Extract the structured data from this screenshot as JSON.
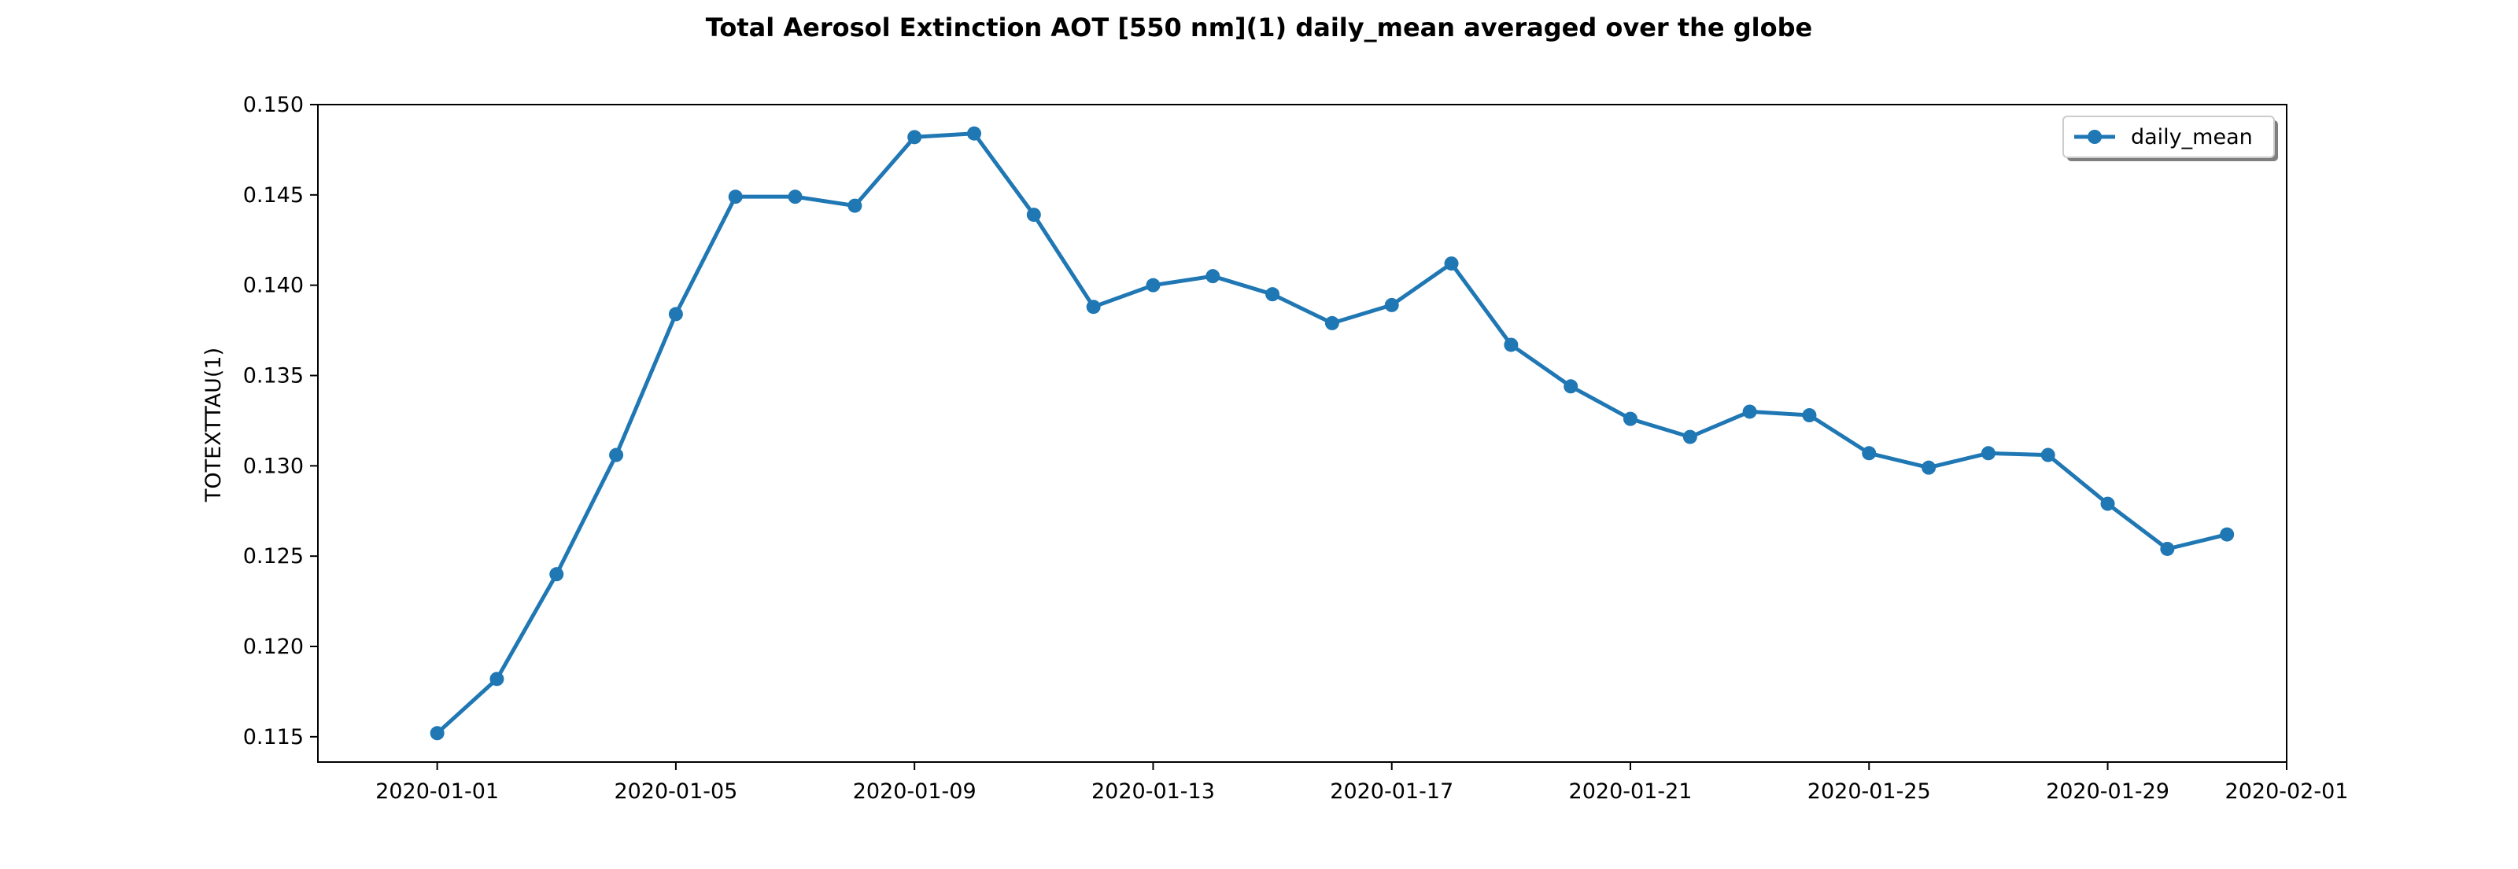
{
  "chart_data": {
    "type": "line",
    "title": "Total Aerosol Extinction AOT [550 nm](1) daily_mean averaged over the globe",
    "xlabel": "",
    "ylabel": "TOTEXTTAU(1)",
    "x": [
      "2020-01-01",
      "2020-01-02",
      "2020-01-03",
      "2020-01-04",
      "2020-01-05",
      "2020-01-06",
      "2020-01-07",
      "2020-01-08",
      "2020-01-09",
      "2020-01-10",
      "2020-01-11",
      "2020-01-12",
      "2020-01-13",
      "2020-01-14",
      "2020-01-15",
      "2020-01-16",
      "2020-01-17",
      "2020-01-18",
      "2020-01-19",
      "2020-01-20",
      "2020-01-21",
      "2020-01-22",
      "2020-01-23",
      "2020-01-24",
      "2020-01-25",
      "2020-01-26",
      "2020-01-27",
      "2020-01-28",
      "2020-01-29",
      "2020-01-30",
      "2020-01-31"
    ],
    "series": [
      {
        "name": "daily_mean",
        "color": "#1f77b4",
        "values": [
          0.1152,
          0.1182,
          0.124,
          0.1306,
          0.1384,
          0.1449,
          0.1449,
          0.1444,
          0.1482,
          0.1484,
          0.1439,
          0.1388,
          0.14,
          0.1405,
          0.1395,
          0.1379,
          0.1389,
          0.1412,
          0.1367,
          0.1344,
          0.1326,
          0.1316,
          0.133,
          0.1328,
          0.1307,
          0.1299,
          0.1307,
          0.1306,
          0.1279,
          0.1254,
          0.1262
        ]
      }
    ],
    "xlim": [
      "2019-12-30",
      "2020-02-01"
    ],
    "ylim": [
      0.1136,
      0.15
    ],
    "x_ticks": [
      "2020-01-01",
      "2020-01-05",
      "2020-01-09",
      "2020-01-13",
      "2020-01-17",
      "2020-01-21",
      "2020-01-25",
      "2020-01-29",
      "2020-02-01"
    ],
    "y_ticks": [
      "0.115",
      "0.120",
      "0.125",
      "0.130",
      "0.135",
      "0.140",
      "0.145",
      "0.150"
    ],
    "grid": false,
    "legend_position": "top-right"
  }
}
